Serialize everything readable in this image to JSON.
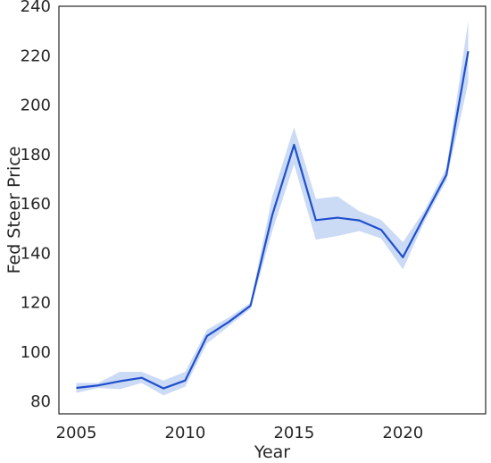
{
  "chart_data": {
    "type": "line",
    "xlabel": "Year",
    "ylabel": "Fed Steer Price",
    "xlim": [
      2004.2,
      2023.8
    ],
    "ylim": [
      75,
      240
    ],
    "x_ticks": [
      2005,
      2010,
      2015,
      2020
    ],
    "y_ticks": [
      80,
      100,
      120,
      140,
      160,
      180,
      200,
      220,
      240
    ],
    "grid": false,
    "series": [
      {
        "color": "#1f4fcc",
        "band_color": "#a9c1ee",
        "x": [
          2005,
          2006,
          2007,
          2008,
          2009,
          2010,
          2011,
          2012,
          2013,
          2014,
          2015,
          2016,
          2017,
          2018,
          2019,
          2020,
          2021,
          2022,
          2023
        ],
        "y": [
          85.5,
          86.5,
          88.2,
          89.6,
          85.3,
          88.5,
          106.5,
          112.2,
          118.8,
          155.5,
          183.9,
          153.4,
          154.4,
          153.3,
          149.5,
          138.4,
          155.2,
          171.8,
          221.8
        ],
        "lower": [
          83.5,
          85.5,
          85.0,
          87.5,
          82.5,
          86.0,
          103.5,
          110.5,
          117.5,
          149.0,
          176.0,
          145.5,
          147.0,
          149.0,
          146.0,
          133.5,
          153.0,
          169.5,
          209.0
        ],
        "upper": [
          87.5,
          87.5,
          92.0,
          92.0,
          88.5,
          92.0,
          109.0,
          114.0,
          120.0,
          163.0,
          191.0,
          162.0,
          163.0,
          157.0,
          153.5,
          144.5,
          157.5,
          174.5,
          234.0
        ]
      }
    ]
  }
}
